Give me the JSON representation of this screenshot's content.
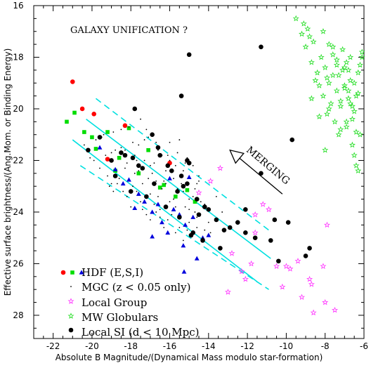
{
  "chart_data": {
    "type": "scatter",
    "title": "GALAXY UNIFICATION ?",
    "xlabel": "Absolute B Magnitude/(Dynamical Mass modulo star-formation)",
    "ylabel": "Effective surface brightness/(Ang.Mom. or Binding Energy)",
    "xlim": [
      -23,
      -6
    ],
    "ylim": [
      28.9,
      16
    ],
    "y_inverted": true,
    "grid": false,
    "legend_position": "bottom-left",
    "x_ticks": [
      -22,
      -20,
      -18,
      -16,
      -14,
      -12,
      -10,
      -8,
      -6
    ],
    "y_ticks": [
      16,
      18,
      20,
      22,
      24,
      26,
      28
    ],
    "x_tick_labels": [
      "-22",
      "-20",
      "-18",
      "-16",
      "-14",
      "-12",
      "-10",
      "-8",
      "-6"
    ],
    "y_tick_labels": [
      "16",
      "18",
      "20",
      "22",
      "24",
      "26",
      "28"
    ],
    "annotation": {
      "text": "MERGING",
      "arrow_from": [
        -10.2,
        23.3
      ],
      "arrow_to": [
        -12.9,
        21.6
      ]
    },
    "colors": {
      "hdf_E": "#ff0000",
      "hdf_S": "#00dd00",
      "hdf_I": "#0000dd",
      "mgc": "#000000",
      "local_group": "#ff33ff",
      "mw_globulars": "#22dd22",
      "local_si": "#000000",
      "fit_lines": "#00e0e0"
    },
    "series": [
      {
        "name": "HDF (E,S,I)",
        "subseries": [
          {
            "marker": "circle",
            "color": "#ff0000",
            "x": [
              -21.0,
              -20.5,
              -19.9,
              -19.2,
              -18.3,
              -16.0
            ],
            "y": [
              18.95,
              20.0,
              20.2,
              21.95,
              20.65,
              22.1
            ]
          },
          {
            "marker": "square",
            "color": "#00dd00",
            "x": [
              -21.3,
              -20.9,
              -20.4,
              -20.0,
              -19.8,
              -19.2,
              -18.8,
              -18.6,
              -18.1,
              -17.6,
              -17.1,
              -16.5,
              -16.3,
              -15.7,
              -15.1,
              -14.7
            ],
            "y": [
              20.5,
              20.15,
              20.9,
              21.1,
              21.55,
              20.9,
              22.4,
              21.9,
              20.75,
              22.5,
              21.6,
              23.05,
              22.95,
              23.4,
              23.15,
              23.6
            ]
          },
          {
            "marker": "triangle",
            "color": "#0000dd",
            "x": [
              -19.6,
              -18.8,
              -18.1,
              -17.6,
              -17.3,
              -16.9,
              -16.6,
              -16.4,
              -16.1,
              -15.8,
              -15.5,
              -15.2,
              -14.8,
              -14.3,
              -14.6,
              -15.3,
              -16.9,
              -17.8,
              -18.4,
              -16.0,
              -15.0,
              -14.0
            ],
            "y": [
              21.5,
              22.35,
              22.75,
              23.3,
              23.6,
              24.0,
              23.7,
              24.4,
              24.8,
              23.9,
              24.1,
              24.5,
              24.2,
              25.0,
              25.8,
              25.3,
              24.95,
              23.85,
              22.9,
              22.7,
              22.65,
              24.9
            ]
          }
        ]
      },
      {
        "name": "MGC (z < 0.05 only)",
        "marker": "dot",
        "color": "#000000",
        "x": [
          -20.4,
          -20.1,
          -19.8,
          -19.6,
          -19.4,
          -19.2,
          -19.0,
          -18.9,
          -18.7,
          -18.5,
          -18.4,
          -18.2,
          -18.1,
          -17.9,
          -17.8,
          -17.6,
          -17.5,
          -17.3,
          -17.2,
          -17.0,
          -16.9,
          -16.7,
          -16.6,
          -16.4,
          -16.3,
          -16.1,
          -16.0,
          -15.8,
          -15.7,
          -15.5,
          -15.4,
          -15.2,
          -15.1,
          -14.9,
          -14.8,
          -14.6,
          -14.5,
          -14.3,
          -14.2,
          -14.0,
          -19.9,
          -19.5,
          -19.1,
          -18.8,
          -18.3,
          -17.9,
          -17.4,
          -17.1,
          -16.8,
          -16.5,
          -16.2,
          -15.9,
          -15.6,
          -15.3,
          -15.0,
          -14.7,
          -14.4,
          -19.3,
          -18.6,
          -18.0,
          -17.7,
          -17.4,
          -17.0,
          -16.7,
          -16.4,
          -16.0,
          -15.7,
          -15.3,
          -15.0,
          -14.6,
          -18.8,
          -18.2,
          -17.6,
          -17.1,
          -16.6,
          -16.1,
          -15.6,
          -15.1,
          -14.6,
          -19.0,
          -18.5,
          -17.8,
          -17.3,
          -16.8,
          -16.3,
          -15.8,
          -15.3,
          -14.8,
          -18.9,
          -18.3,
          -17.7,
          -17.2,
          -16.7,
          -16.2,
          -15.7,
          -15.2,
          -14.7,
          -14.2,
          -17.5,
          -17.0,
          -16.5,
          -16.0,
          -15.5,
          -15.0,
          -14.5,
          -13.9,
          -13.6,
          -13.3
        ],
        "y": [
          21.4,
          21.9,
          21.2,
          22.3,
          21.0,
          22.6,
          21.7,
          20.9,
          22.9,
          21.5,
          23.2,
          22.1,
          20.7,
          23.0,
          21.8,
          22.4,
          23.6,
          22.0,
          20.8,
          23.3,
          22.5,
          24.0,
          21.6,
          23.1,
          22.8,
          24.3,
          21.3,
          23.5,
          22.2,
          24.6,
          22.9,
          23.8,
          21.9,
          24.9,
          23.4,
          24.2,
          22.6,
          25.0,
          23.7,
          24.4,
          22.0,
          21.1,
          23.0,
          22.6,
          22.3,
          21.3,
          23.9,
          21.1,
          22.1,
          23.9,
          22.4,
          24.1,
          21.7,
          23.2,
          24.4,
          23.1,
          23.6,
          21.8,
          22.7,
          23.8,
          22.0,
          22.9,
          24.3,
          22.8,
          21.8,
          23.6,
          24.8,
          22.4,
          23.9,
          22.9,
          21.6,
          23.4,
          21.4,
          22.7,
          23.4,
          21.8,
          23.1,
          24.7,
          24.6,
          22.9,
          20.8,
          22.5,
          21.2,
          23.7,
          24.6,
          22.7,
          25.1,
          22.2,
          23.2,
          21.6,
          23.2,
          24.1,
          21.3,
          22.9,
          23.8,
          22.1,
          24.0,
          24.7,
          20.4,
          22.2,
          24.2,
          22.0,
          21.2,
          23.5,
          22.8,
          24.8,
          23.4,
          24.0
        ]
      },
      {
        "name": "Local Group",
        "marker": "star",
        "color": "#ff33ff",
        "x": [
          -14.5,
          -13.9,
          -13.4,
          -13.0,
          -12.3,
          -12.1,
          -11.8,
          -11.6,
          -11.2,
          -10.9,
          -10.5,
          -10.2,
          -9.8,
          -9.4,
          -9.2,
          -8.8,
          -8.6,
          -8.1,
          -8.0,
          -7.9,
          -7.5,
          -12.8,
          -11.6,
          -10.0,
          -8.7
        ],
        "y": [
          23.25,
          22.8,
          22.3,
          27.1,
          26.3,
          26.6,
          26.0,
          24.8,
          23.7,
          23.9,
          26.1,
          26.9,
          26.2,
          25.9,
          27.3,
          26.6,
          27.9,
          26.1,
          27.5,
          24.5,
          27.8,
          25.6,
          24.1,
          26.1,
          26.8
        ],
        "label": "Local Group"
      },
      {
        "name": "MW Globulars",
        "marker": "star",
        "color": "#22dd22",
        "x": [
          -9.5,
          -9.2,
          -9.0,
          -8.9,
          -8.7,
          -8.6,
          -8.4,
          -8.3,
          -8.2,
          -8.1,
          -8.0,
          -7.9,
          -7.8,
          -7.7,
          -7.6,
          -7.5,
          -7.4,
          -7.3,
          -7.2,
          -7.1,
          -7.0,
          -6.9,
          -6.8,
          -6.7,
          -6.6,
          -6.5,
          -6.4,
          -6.3,
          -6.2,
          -6.1,
          -8.8,
          -8.5,
          -8.1,
          -7.8,
          -7.4,
          -7.1,
          -6.8,
          -6.5,
          -6.2,
          -9.1,
          -8.7,
          -8.3,
          -7.9,
          -7.6,
          -7.2,
          -6.9,
          -6.6,
          -6.3,
          -8.0,
          -7.4,
          -7.0,
          -6.7,
          -6.4,
          -6.1,
          -7.8,
          -7.2,
          -6.8,
          -6.5,
          -7.3,
          -6.9,
          -6.6,
          -6.3,
          -7.6,
          -7.0,
          -6.7,
          -6.4
        ],
        "y": [
          16.5,
          17.1,
          17.6,
          16.9,
          18.2,
          17.4,
          18.6,
          19.1,
          18.0,
          19.5,
          18.4,
          20.2,
          19.0,
          19.8,
          18.7,
          20.5,
          19.3,
          21.0,
          19.9,
          18.5,
          19.2,
          20.7,
          19.6,
          18.9,
          21.4,
          20.1,
          22.2,
          19.4,
          18.3,
          17.8,
          17.2,
          18.9,
          17.0,
          17.5,
          18.1,
          17.7,
          18.5,
          19.0,
          21.0,
          16.7,
          19.6,
          20.3,
          18.8,
          17.9,
          19.7,
          18.2,
          20.4,
          18.6,
          21.6,
          18.3,
          19.1,
          19.8,
          20.9,
          18.0,
          20.0,
          20.8,
          19.3,
          21.8,
          18.7,
          20.5,
          19.9,
          22.4,
          17.6,
          18.4,
          18.0,
          19.5
        ],
        "label": "MW Globulars"
      },
      {
        "name": "Local SI (d < 10 Mpc)",
        "marker": "circle",
        "color": "#000000",
        "x": [
          -20.2,
          -19.6,
          -19.0,
          -18.8,
          -18.3,
          -18.0,
          -17.6,
          -17.2,
          -16.8,
          -16.5,
          -16.2,
          -15.9,
          -15.5,
          -15.3,
          -15.1,
          -14.8,
          -14.5,
          -14.3,
          -14.0,
          -13.6,
          -13.2,
          -12.9,
          -12.5,
          -12.1,
          -11.6,
          -11.3,
          -10.8,
          -10.4,
          -9.9,
          -9.0,
          -8.8,
          -17.8,
          -16.9,
          -16.1,
          -15.6,
          -15.0,
          -14.6,
          -18.5,
          -17.4,
          -15.4,
          -14.9,
          -15.1,
          -17.9,
          -16.6,
          -14.2,
          -9.7,
          -15.4,
          -11.3,
          -15.0,
          -10.6,
          -13.4,
          -12.1
        ],
        "y": [
          21.6,
          21.1,
          22.0,
          22.6,
          21.8,
          23.2,
          22.2,
          23.4,
          22.9,
          21.8,
          23.8,
          22.4,
          24.2,
          23.0,
          22.9,
          24.8,
          24.1,
          25.1,
          23.9,
          24.3,
          24.7,
          24.6,
          24.4,
          24.8,
          25.0,
          22.5,
          25.1,
          25.9,
          24.4,
          25.7,
          25.4,
          20.0,
          21.0,
          22.2,
          23.2,
          22.1,
          23.5,
          21.7,
          22.3,
          22.6,
          24.9,
          22.0,
          21.9,
          21.5,
          23.8,
          21.2,
          19.5,
          17.6,
          17.9,
          24.3,
          25.4,
          23.9
        ]
      }
    ],
    "fit_lines": [
      {
        "name": "",
        "style": "solid",
        "x": [
          -20.3,
          -10.8
        ],
        "y": [
          20.4,
          25.8
        ]
      },
      {
        "name": "",
        "style": "solid",
        "x": [
          -21.0,
          -11.5
        ],
        "y": [
          21.2,
          26.7
        ]
      },
      {
        "name": "",
        "style": "dashed",
        "x": [
          -19.8,
          -10.9
        ],
        "y": [
          19.6,
          24.7
        ]
      },
      {
        "name": "",
        "style": "dashed",
        "x": [
          -20.6,
          -10.9
        ],
        "y": [
          22.2,
          27.0
        ]
      }
    ]
  }
}
